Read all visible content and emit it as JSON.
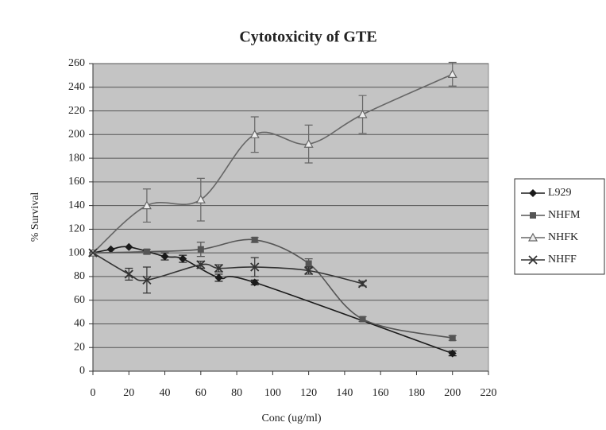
{
  "chart_data": {
    "type": "line",
    "title": "Cytotoxicity of GTE",
    "xlabel": "Conc (ug/ml)",
    "ylabel": "% Survival",
    "xlim": [
      0,
      220
    ],
    "xticks": [
      0,
      20,
      40,
      60,
      80,
      100,
      120,
      140,
      160,
      180,
      200,
      220
    ],
    "ylim": [
      0,
      260
    ],
    "yticks": [
      0,
      20,
      40,
      60,
      80,
      100,
      120,
      140,
      160,
      180,
      200,
      220,
      240,
      260
    ],
    "grid": true,
    "legend": "right",
    "series": [
      {
        "name": "L929",
        "color": "#1a1a1a",
        "marker": "diamond",
        "x": [
          0,
          10,
          20,
          40,
          50,
          70,
          90,
          200
        ],
        "values": [
          100,
          103,
          105,
          97,
          95,
          79,
          75,
          15
        ],
        "errors": [
          null,
          null,
          null,
          3,
          3,
          3,
          2,
          2
        ]
      },
      {
        "name": "NHFM",
        "color": "#555555",
        "marker": "square",
        "x": [
          0,
          30,
          60,
          90,
          120,
          150,
          200
        ],
        "values": [
          100,
          101,
          103,
          111,
          91,
          44,
          28
        ],
        "errors": [
          null,
          2,
          6,
          2,
          4,
          2,
          2
        ]
      },
      {
        "name": "NHFK",
        "color": "#666666",
        "marker": "triangle",
        "x": [
          0,
          30,
          60,
          90,
          120,
          150,
          200
        ],
        "values": [
          100,
          140,
          145,
          200,
          192,
          217,
          251
        ],
        "errors": [
          null,
          14,
          18,
          15,
          16,
          16,
          10
        ]
      },
      {
        "name": "NHFF",
        "color": "#333333",
        "marker": "cross",
        "x": [
          0,
          20,
          30,
          60,
          70,
          90,
          120,
          150
        ],
        "values": [
          100,
          82,
          77,
          90,
          87,
          88,
          85,
          74
        ],
        "errors": [
          null,
          5,
          11,
          3,
          3,
          8,
          3,
          2
        ]
      }
    ]
  }
}
